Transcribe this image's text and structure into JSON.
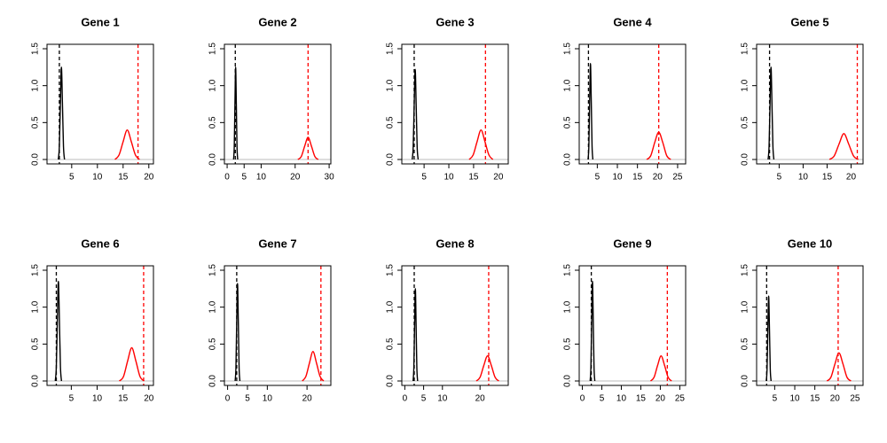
{
  "chart_data": [
    {
      "type": "density",
      "title": "Gene 1",
      "xlim": [
        0.2,
        20.9
      ],
      "xticks": [
        5,
        10,
        15,
        20
      ],
      "ylim": [
        -0.06,
        1.56
      ],
      "yticks": [
        {
          "value": 0,
          "label": "0.0"
        },
        0.5,
        {
          "value": 1,
          "label": "1.0"
        },
        1.5
      ],
      "series": [
        {
          "color": "#000000",
          "x": [
            2.4,
            2.6,
            2.8,
            3.0,
            3.2,
            3.4,
            3.6
          ],
          "values": [
            0,
            0.18,
            0.76,
            1.25,
            0.76,
            0.18,
            0
          ]
        },
        {
          "color": "#ff0000",
          "x": [
            13.4,
            14.2,
            15.0,
            15.8,
            16.6,
            17.4,
            18.2
          ],
          "values": [
            0,
            0.06,
            0.24,
            0.4,
            0.24,
            0.06,
            0
          ]
        }
      ],
      "vlines": [
        {
          "x": 2.6,
          "color": "#000000",
          "style": "dashed"
        },
        {
          "x": 17.9,
          "color": "#ff0000",
          "style": "dashed"
        }
      ]
    },
    {
      "type": "density",
      "title": "Gene 2",
      "xlim": [
        -0.8,
        30.5
      ],
      "xticks": [
        0,
        5,
        10,
        20,
        30
      ],
      "ylim": [
        -0.06,
        1.56
      ],
      "yticks": [
        {
          "value": 0,
          "label": "0.0"
        },
        0.5,
        {
          "value": 1,
          "label": "1.0"
        },
        1.5
      ],
      "series": [
        {
          "color": "#000000",
          "x": [
            1.9,
            2.1,
            2.3,
            2.5,
            2.7,
            2.9,
            3.1
          ],
          "values": [
            0,
            0.18,
            0.76,
            1.25,
            0.76,
            0.18,
            0
          ]
        },
        {
          "color": "#ff0000",
          "x": [
            20.8,
            21.8,
            22.8,
            23.8,
            24.8,
            25.8,
            26.8
          ],
          "values": [
            0,
            0.04,
            0.18,
            0.3,
            0.18,
            0.04,
            0
          ]
        }
      ],
      "vlines": [
        {
          "x": 2.4,
          "color": "#000000",
          "style": "dashed"
        },
        {
          "x": 23.8,
          "color": "#ff0000",
          "style": "dashed"
        }
      ]
    },
    {
      "type": "density",
      "title": "Gene 3",
      "xlim": [
        0.5,
        22
      ],
      "xticks": [
        5,
        10,
        15,
        20
      ],
      "ylim": [
        -0.06,
        1.56
      ],
      "yticks": [
        {
          "value": 0,
          "label": "0.0"
        },
        0.5,
        {
          "value": 1,
          "label": "1.0"
        },
        1.5
      ],
      "series": [
        {
          "color": "#000000",
          "x": [
            2.6,
            2.8,
            3.0,
            3.2,
            3.4,
            3.6,
            3.8
          ],
          "values": [
            0,
            0.17,
            0.74,
            1.22,
            0.74,
            0.17,
            0
          ]
        },
        {
          "color": "#ff0000",
          "x": [
            14.1,
            14.9,
            15.7,
            16.5,
            17.3,
            18.1,
            18.9
          ],
          "values": [
            0,
            0.06,
            0.24,
            0.4,
            0.24,
            0.06,
            0
          ]
        }
      ],
      "vlines": [
        {
          "x": 3.0,
          "color": "#000000",
          "style": "dashed"
        },
        {
          "x": 17.4,
          "color": "#ff0000",
          "style": "dashed"
        }
      ]
    },
    {
      "type": "density",
      "title": "Gene 4",
      "xlim": [
        0.5,
        27
      ],
      "xticks": [
        5,
        10,
        15,
        20,
        25
      ],
      "ylim": [
        -0.06,
        1.56
      ],
      "yticks": [
        {
          "value": 0,
          "label": "0.0"
        },
        0.5,
        {
          "value": 1,
          "label": "1.0"
        },
        1.5
      ],
      "series": [
        {
          "color": "#000000",
          "x": [
            2.7,
            2.9,
            3.1,
            3.3,
            3.5,
            3.7,
            3.9
          ],
          "values": [
            0,
            0.18,
            0.79,
            1.3,
            0.79,
            0.18,
            0
          ]
        },
        {
          "color": "#ff0000",
          "x": [
            17.3,
            18.3,
            19.3,
            20.3,
            21.3,
            22.3,
            23.3
          ],
          "values": [
            0,
            0.05,
            0.23,
            0.37,
            0.23,
            0.05,
            0
          ]
        }
      ],
      "vlines": [
        {
          "x": 2.8,
          "color": "#000000",
          "style": "dashed"
        },
        {
          "x": 20.3,
          "color": "#ff0000",
          "style": "dashed"
        }
      ]
    },
    {
      "type": "density",
      "title": "Gene 5",
      "xlim": [
        0.3,
        22.5
      ],
      "xticks": [
        5,
        10,
        15,
        20
      ],
      "ylim": [
        -0.06,
        1.56
      ],
      "yticks": [
        {
          "value": 0,
          "label": "0.0"
        },
        0.5,
        {
          "value": 1,
          "label": "1.0"
        },
        1.5
      ],
      "series": [
        {
          "color": "#000000",
          "x": [
            2.7,
            2.9,
            3.1,
            3.3,
            3.5,
            3.7,
            3.9
          ],
          "values": [
            0,
            0.18,
            0.76,
            1.25,
            0.76,
            0.18,
            0
          ]
        },
        {
          "color": "#ff0000",
          "x": [
            15.5,
            16.5,
            17.5,
            18.5,
            19.5,
            20.5,
            21.5
          ],
          "values": [
            0,
            0.05,
            0.21,
            0.35,
            0.21,
            0.05,
            0
          ]
        }
      ],
      "vlines": [
        {
          "x": 3.0,
          "color": "#000000",
          "style": "dashed"
        },
        {
          "x": 21.3,
          "color": "#ff0000",
          "style": "dashed"
        }
      ]
    },
    {
      "type": "density",
      "title": "Gene 6",
      "xlim": [
        0.3,
        20.9
      ],
      "xticks": [
        5,
        10,
        15,
        20
      ],
      "ylim": [
        -0.06,
        1.56
      ],
      "yticks": [
        {
          "value": 0,
          "label": "0.0"
        },
        0.5,
        {
          "value": 1,
          "label": "1.0"
        },
        1.5
      ],
      "series": [
        {
          "color": "#000000",
          "x": [
            1.9,
            2.1,
            2.3,
            2.5,
            2.7,
            2.9,
            3.1
          ],
          "values": [
            0,
            0.19,
            0.82,
            1.35,
            0.82,
            0.19,
            0
          ]
        },
        {
          "color": "#ff0000",
          "x": [
            14.3,
            15.1,
            15.9,
            16.7,
            17.5,
            18.3,
            19.1
          ],
          "values": [
            0,
            0.06,
            0.27,
            0.45,
            0.27,
            0.06,
            0
          ]
        }
      ],
      "vlines": [
        {
          "x": 2.1,
          "color": "#000000",
          "style": "dashed"
        },
        {
          "x": 19.0,
          "color": "#ff0000",
          "style": "dashed"
        }
      ]
    },
    {
      "type": "density",
      "title": "Gene 7",
      "xlim": [
        -0.8,
        26
      ],
      "xticks": [
        0,
        5,
        10,
        20
      ],
      "ylim": [
        -0.06,
        1.56
      ],
      "yticks": [
        {
          "value": 0,
          "label": "0.0"
        },
        0.5,
        {
          "value": 1,
          "label": "1.0"
        },
        1.5
      ],
      "series": [
        {
          "color": "#000000",
          "x": [
            1.9,
            2.1,
            2.3,
            2.5,
            2.7,
            2.9,
            3.1
          ],
          "values": [
            0,
            0.18,
            0.81,
            1.32,
            0.81,
            0.18,
            0
          ]
        },
        {
          "color": "#ff0000",
          "x": [
            18.8,
            19.7,
            20.6,
            21.5,
            22.4,
            23.3,
            24.2
          ],
          "values": [
            0,
            0.06,
            0.24,
            0.4,
            0.24,
            0.06,
            0
          ]
        }
      ],
      "vlines": [
        {
          "x": 2.3,
          "color": "#000000",
          "style": "dashed"
        },
        {
          "x": 23.5,
          "color": "#ff0000",
          "style": "dashed"
        }
      ]
    },
    {
      "type": "density",
      "title": "Gene 8",
      "xlim": [
        -0.8,
        27.5
      ],
      "xticks": [
        0,
        5,
        10,
        20
      ],
      "ylim": [
        -0.06,
        1.56
      ],
      "yticks": [
        {
          "value": 0,
          "label": "0.0"
        },
        0.5,
        {
          "value": 1,
          "label": "1.0"
        },
        1.5
      ],
      "series": [
        {
          "color": "#000000",
          "x": [
            2.2,
            2.4,
            2.6,
            2.8,
            3.0,
            3.2,
            3.4
          ],
          "values": [
            0,
            0.18,
            0.76,
            1.25,
            0.76,
            0.18,
            0
          ]
        },
        {
          "color": "#ff0000",
          "x": [
            19,
            20,
            21,
            22,
            23,
            24,
            25
          ],
          "values": [
            0,
            0.05,
            0.21,
            0.34,
            0.21,
            0.05,
            0
          ]
        }
      ],
      "vlines": [
        {
          "x": 2.5,
          "color": "#000000",
          "style": "dashed"
        },
        {
          "x": 22.3,
          "color": "#ff0000",
          "style": "dashed"
        }
      ]
    },
    {
      "type": "density",
      "title": "Gene 9",
      "xlim": [
        -0.8,
        26.5
      ],
      "xticks": [
        0,
        5,
        10,
        15,
        20,
        25
      ],
      "ylim": [
        -0.06,
        1.56
      ],
      "yticks": [
        {
          "value": 0,
          "label": "0.0"
        },
        0.5,
        {
          "value": 1,
          "label": "1.0"
        },
        1.5
      ],
      "series": [
        {
          "color": "#000000",
          "x": [
            2.0,
            2.2,
            2.4,
            2.6,
            2.8,
            3.0,
            3.2
          ],
          "values": [
            0,
            0.19,
            0.82,
            1.35,
            0.82,
            0.19,
            0
          ]
        },
        {
          "color": "#ff0000",
          "x": [
            17.5,
            18.4,
            19.3,
            20.2,
            21.1,
            22.0,
            22.9
          ],
          "values": [
            0,
            0.05,
            0.21,
            0.34,
            0.21,
            0.05,
            0
          ]
        }
      ],
      "vlines": [
        {
          "x": 2.3,
          "color": "#000000",
          "style": "dashed"
        },
        {
          "x": 21.8,
          "color": "#ff0000",
          "style": "dashed"
        }
      ]
    },
    {
      "type": "density",
      "title": "Gene 10",
      "xlim": [
        0.5,
        27
      ],
      "xticks": [
        5,
        10,
        15,
        20,
        25
      ],
      "ylim": [
        -0.06,
        1.56
      ],
      "yticks": [
        {
          "value": 0,
          "label": "0.0"
        },
        0.5,
        {
          "value": 1,
          "label": "1.0"
        },
        1.5
      ],
      "series": [
        {
          "color": "#000000",
          "x": [
            2.9,
            3.1,
            3.3,
            3.5,
            3.7,
            3.9,
            4.1
          ],
          "values": [
            0,
            0.16,
            0.7,
            1.15,
            0.7,
            0.16,
            0
          ]
        },
        {
          "color": "#ff0000",
          "x": [
            18,
            19,
            20,
            21,
            22,
            23,
            24
          ],
          "values": [
            0,
            0.05,
            0.23,
            0.38,
            0.23,
            0.05,
            0
          ]
        }
      ],
      "vlines": [
        {
          "x": 3.0,
          "color": "#000000",
          "style": "dashed"
        },
        {
          "x": 20.8,
          "color": "#ff0000",
          "style": "dashed"
        }
      ]
    }
  ]
}
